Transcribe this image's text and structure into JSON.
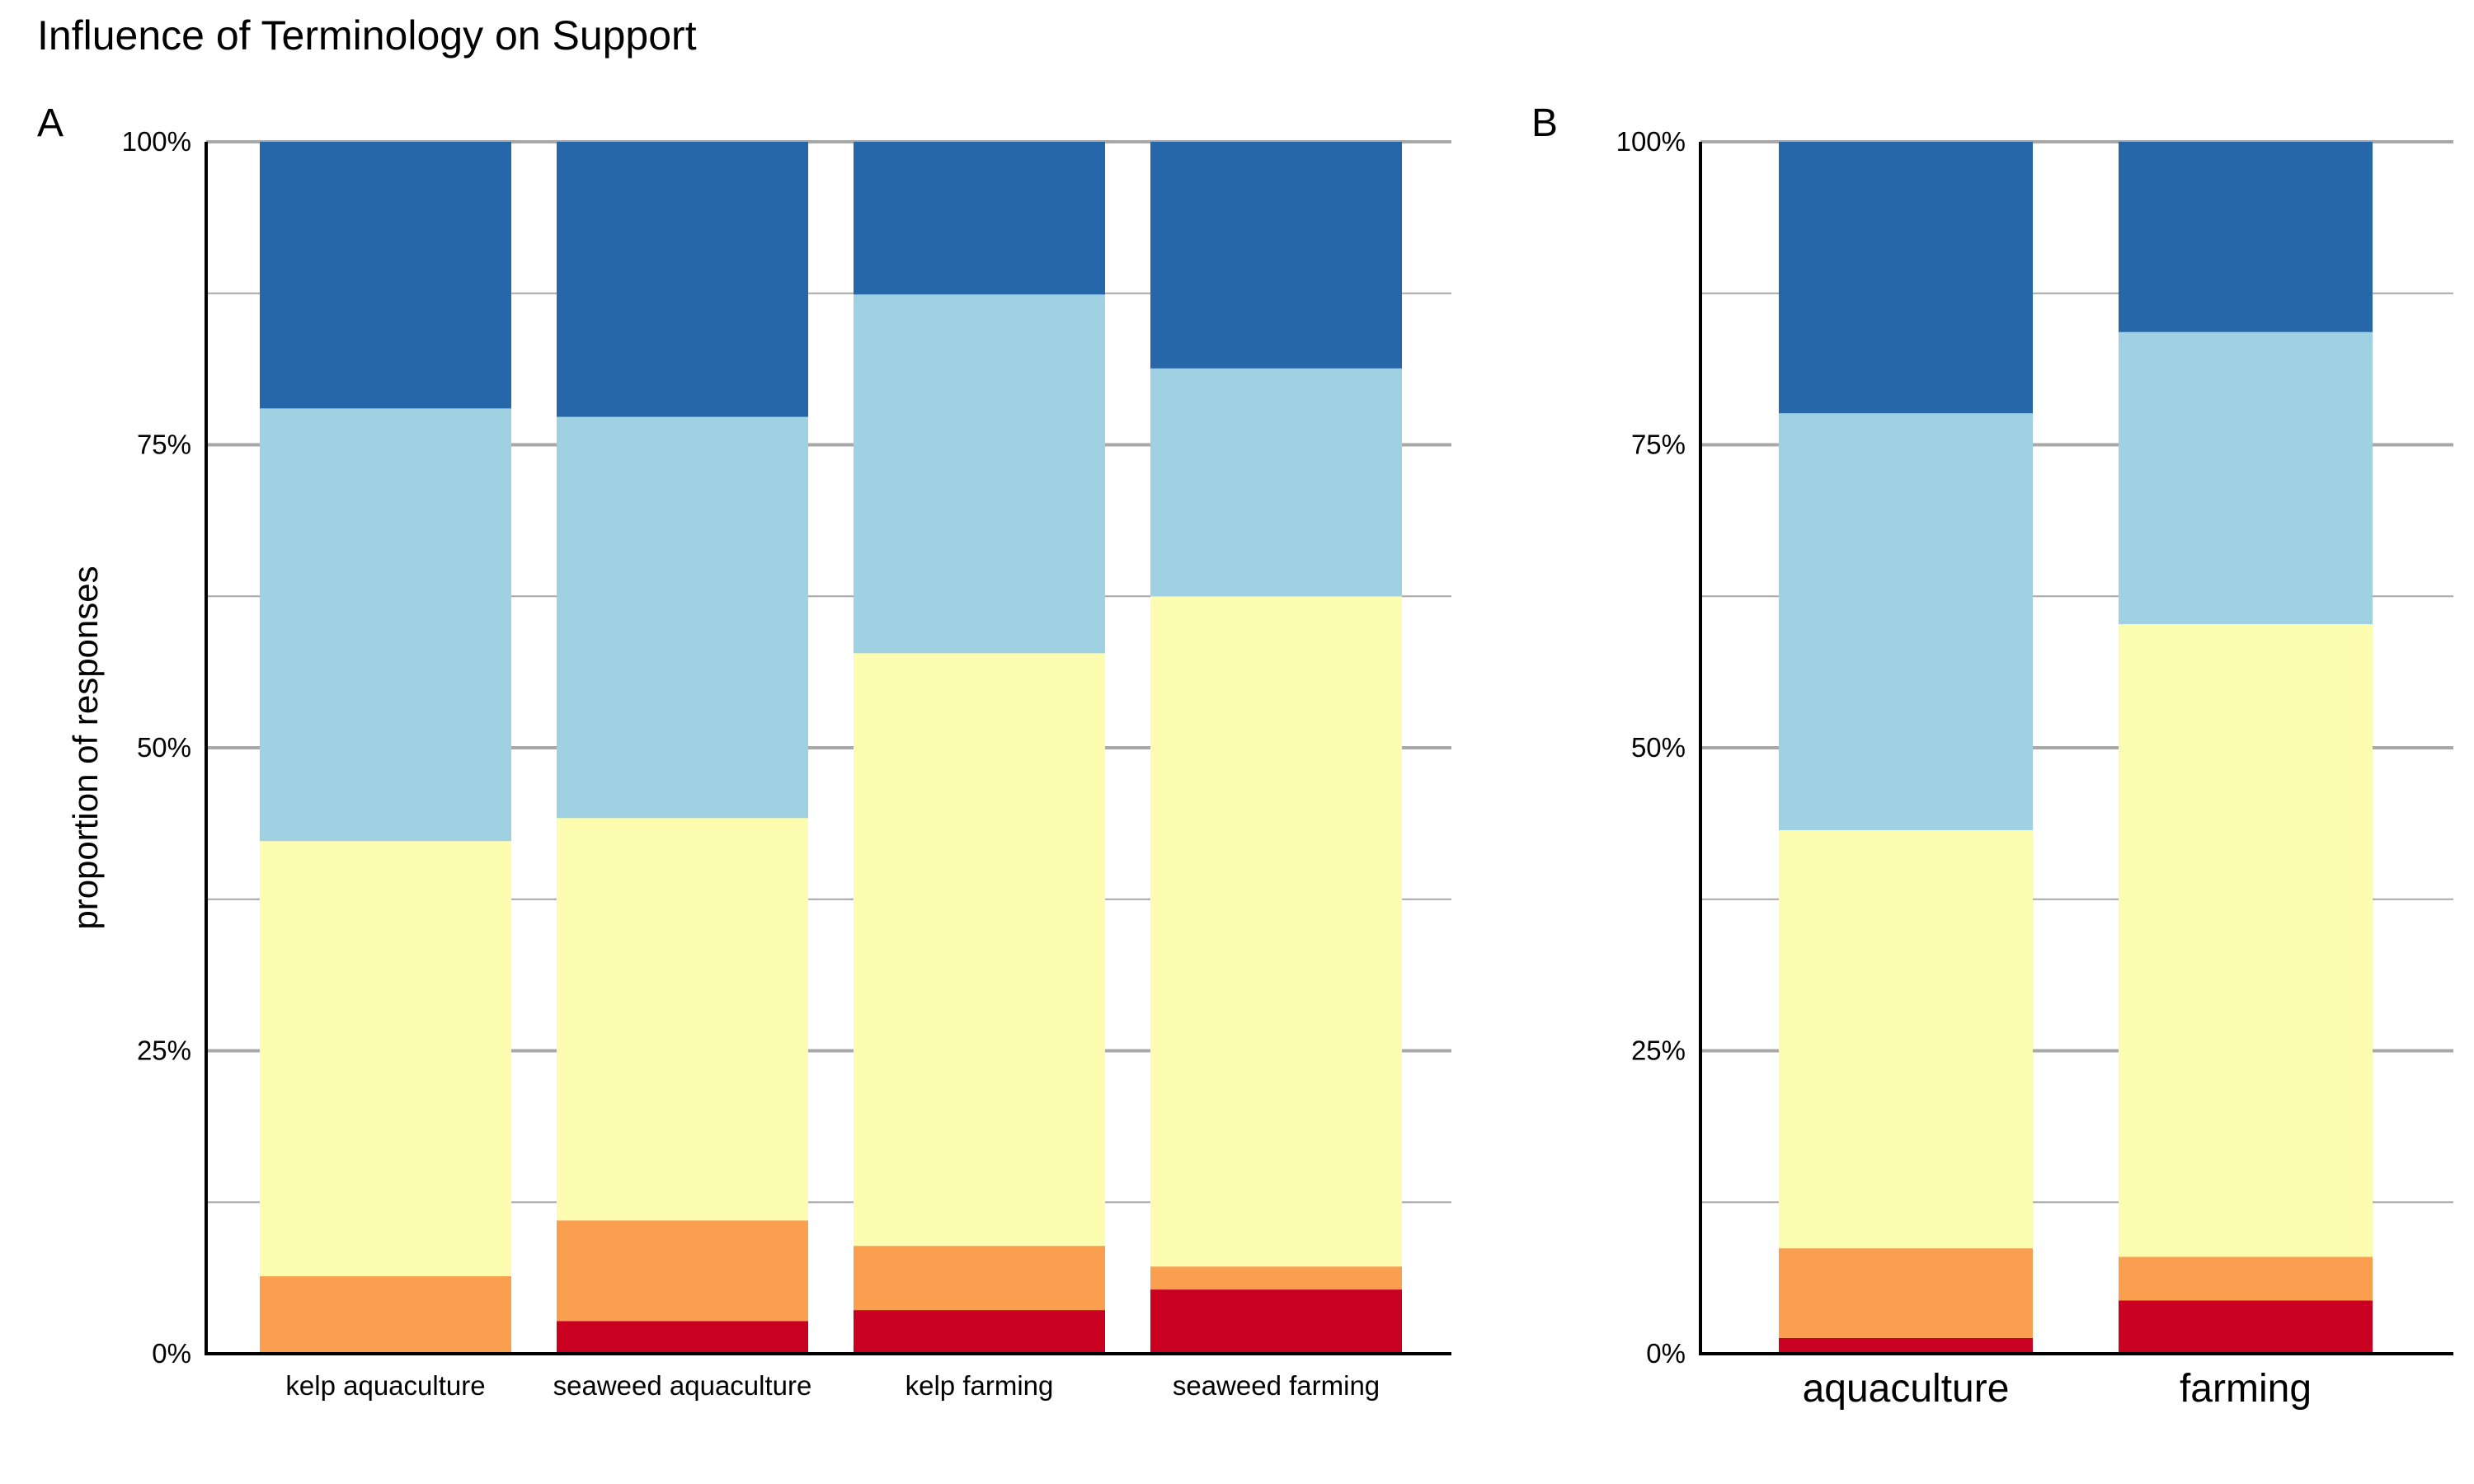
{
  "title": "Influence of Terminology on Support",
  "ylabel": "proportion of responses",
  "colors": {
    "segments": [
      "#ca0020",
      "#fa9e50",
      "#fdfdb2",
      "#9fd1e2",
      "#2567a8"
    ],
    "grid": "#a8a8a8",
    "axis": "#000000"
  },
  "chart_data": [
    {
      "type": "bar",
      "stacked": true,
      "panel_label": "A",
      "categories": [
        "kelp aquaculture",
        "seaweed aquaculture",
        "kelp farming",
        "seaweed farming"
      ],
      "series": [
        {
          "values": [
            0.0,
            2.7,
            3.6,
            5.3
          ]
        },
        {
          "values": [
            6.4,
            8.3,
            5.3,
            1.9
          ]
        },
        {
          "values": [
            35.9,
            33.2,
            48.9,
            55.3
          ]
        },
        {
          "values": [
            35.7,
            33.1,
            29.6,
            18.8
          ]
        },
        {
          "values": [
            22.0,
            22.7,
            12.6,
            18.7
          ]
        }
      ],
      "ylim": [
        0,
        100
      ],
      "yticks": [
        "0%",
        "25%",
        "50%",
        "75%",
        "100%"
      ],
      "grid": true
    },
    {
      "type": "bar",
      "stacked": true,
      "panel_label": "B",
      "categories": [
        "aquaculture",
        "farming"
      ],
      "series": [
        {
          "values": [
            1.3,
            4.4
          ]
        },
        {
          "values": [
            7.4,
            3.6
          ]
        },
        {
          "values": [
            34.5,
            52.2
          ]
        },
        {
          "values": [
            34.4,
            24.1
          ]
        },
        {
          "values": [
            22.4,
            15.7
          ]
        }
      ],
      "ylim": [
        0,
        100
      ],
      "yticks": [
        "0%",
        "25%",
        "50%",
        "75%",
        "100%"
      ],
      "grid": true
    }
  ]
}
